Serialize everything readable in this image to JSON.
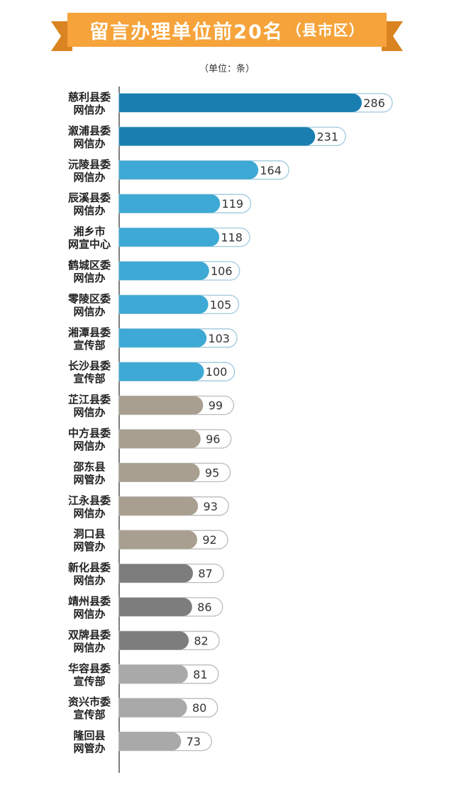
{
  "title": {
    "main": "留言办理单位前20名",
    "paren": "（县市区）"
  },
  "unit_label": "（单位：条）",
  "colors": {
    "banner": "#F5A33A",
    "banner_dark": "#D98420",
    "top": "#1A7FB0",
    "blue": "#3DA9D4",
    "tan": "#A89F90",
    "darkgray": "#7D7D7D",
    "lightgray": "#A9A9A9",
    "pill_border": "#9FC9DC",
    "pill_border_gray": "#BBBBBB"
  },
  "chart_data": {
    "type": "bar",
    "orientation": "horizontal",
    "title": "留言办理单位前20名（县市区）",
    "unit": "（单位：条）",
    "categories": [
      [
        "慈利县委",
        "网信办"
      ],
      [
        "溆浦县委",
        "网信办"
      ],
      [
        "沅陵县委",
        "网信办"
      ],
      [
        "辰溪县委",
        "网信办"
      ],
      [
        "湘乡市",
        "网宣中心"
      ],
      [
        "鹤城区委",
        "网信办"
      ],
      [
        "零陵区委",
        "网信办"
      ],
      [
        "湘潭县委",
        "宣传部"
      ],
      [
        "长沙县委",
        "宣传部"
      ],
      [
        "芷江县委",
        "网信办"
      ],
      [
        "中方县委",
        "网信办"
      ],
      [
        "邵东县",
        "网管办"
      ],
      [
        "江永县委",
        "网信办"
      ],
      [
        "洞口县",
        "网管办"
      ],
      [
        "新化县委",
        "网信办"
      ],
      [
        "靖州县委",
        "网信办"
      ],
      [
        "双牌县委",
        "网信办"
      ],
      [
        "华容县委",
        "宣传部"
      ],
      [
        "资兴市委",
        "宣传部"
      ],
      [
        "隆回县",
        "网管办"
      ]
    ],
    "values": [
      286,
      231,
      164,
      119,
      118,
      106,
      105,
      103,
      100,
      99,
      96,
      95,
      93,
      92,
      87,
      86,
      82,
      81,
      80,
      73
    ],
    "color_groups": [
      "top",
      "top",
      "blue",
      "blue",
      "blue",
      "blue",
      "blue",
      "blue",
      "blue",
      "tan",
      "tan",
      "tan",
      "tan",
      "tan",
      "darkgray",
      "darkgray",
      "darkgray",
      "lightgray",
      "lightgray",
      "lightgray"
    ]
  }
}
